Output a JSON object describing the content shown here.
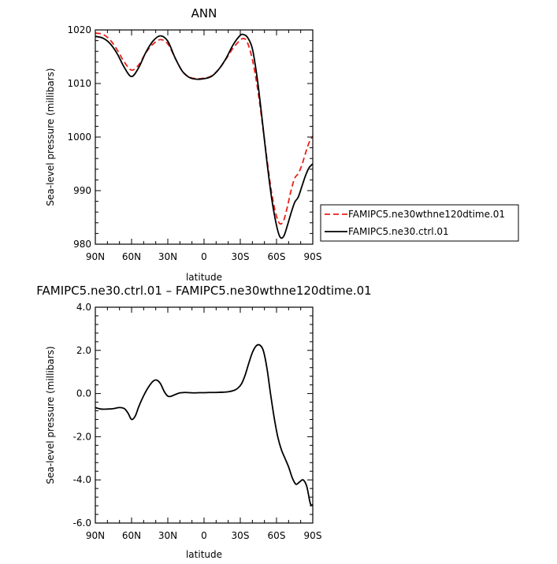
{
  "chart_data": [
    {
      "type": "line",
      "title": "ANN",
      "xlabel": "latitude",
      "ylabel": "Sea-level pressure (millibars)",
      "x_ticks": [
        90,
        60,
        30,
        0,
        -30,
        -60,
        -90
      ],
      "x_tick_labels": [
        "90N",
        "60N",
        "30N",
        "0",
        "30S",
        "60S",
        "90S"
      ],
      "xlim": [
        90,
        -90
      ],
      "y_ticks": [
        980,
        990,
        1000,
        1010,
        1020
      ],
      "y_tick_labels": [
        "980",
        "990",
        "1000",
        "1010",
        "1020"
      ],
      "ylim": [
        980,
        1020
      ],
      "grid": false,
      "legend_position": "right, outside plot",
      "series": [
        {
          "name": "FAMIPC5.ne30wthne120dtime.01",
          "color": "#e8201a",
          "dash": "dashed",
          "x": [
            90,
            84,
            78,
            72,
            66,
            60,
            54,
            48,
            42,
            36,
            30,
            24,
            18,
            12,
            6,
            0,
            -6,
            -12,
            -18,
            -24,
            -30,
            -33,
            -36,
            -40,
            -44,
            -48,
            -52,
            -56,
            -60,
            -63,
            -66,
            -69,
            -72,
            -75,
            -78,
            -81,
            -84,
            -87,
            -90
          ],
          "y": [
            1019.4,
            1019.2,
            1018.2,
            1016.3,
            1014.0,
            1012.5,
            1013.5,
            1015.8,
            1017.4,
            1018.2,
            1017.4,
            1014.8,
            1012.3,
            1011.2,
            1010.9,
            1011.0,
            1011.4,
            1012.6,
            1014.5,
            1016.6,
            1018.1,
            1018.4,
            1017.6,
            1014.5,
            1009.5,
            1003.0,
            996.0,
            989.5,
            985.2,
            983.8,
            984.5,
            987.0,
            990.0,
            992.3,
            993.2,
            994.8,
            997.0,
            999.0,
            1000.2
          ]
        },
        {
          "name": "FAMIPC5.ne30.ctrl.01",
          "color": "#000000",
          "dash": "solid",
          "x": [
            90,
            84,
            78,
            72,
            66,
            60,
            54,
            48,
            42,
            36,
            30,
            24,
            18,
            12,
            6,
            0,
            -6,
            -12,
            -18,
            -24,
            -30,
            -33,
            -36,
            -40,
            -44,
            -48,
            -52,
            -56,
            -60,
            -63,
            -66,
            -69,
            -72,
            -75,
            -78,
            -81,
            -84,
            -87,
            -90
          ],
          "y": [
            1018.8,
            1018.5,
            1017.5,
            1015.6,
            1013.0,
            1011.3,
            1013.0,
            1015.9,
            1018.0,
            1018.9,
            1017.9,
            1014.8,
            1012.3,
            1011.1,
            1010.8,
            1010.9,
            1011.3,
            1012.6,
            1014.6,
            1017.2,
            1019.0,
            1019.1,
            1018.6,
            1016.5,
            1011.0,
            1003.5,
            995.5,
            988.5,
            983.5,
            981.3,
            981.5,
            983.5,
            985.8,
            987.8,
            988.8,
            990.8,
            992.8,
            994.3,
            995.0
          ]
        }
      ]
    },
    {
      "type": "line",
      "title": "FAMIPC5.ne30.ctrl.01 – FAMIPC5.ne30wthne120dtime.01",
      "xlabel": "latitude",
      "ylabel": "Sea-level pressure (millibars)",
      "x_ticks": [
        90,
        60,
        30,
        0,
        -30,
        -60,
        -90
      ],
      "x_tick_labels": [
        "90N",
        "60N",
        "30N",
        "0",
        "30S",
        "60S",
        "90S"
      ],
      "xlim": [
        90,
        -90
      ],
      "y_ticks": [
        -6,
        -4,
        -2,
        0,
        2,
        4
      ],
      "y_tick_labels": [
        "-6.0",
        "-4.0",
        "-2.0",
        "0.0",
        "2.0",
        "4.0"
      ],
      "ylim": [
        -6,
        4
      ],
      "grid": false,
      "series": [
        {
          "color": "#000000",
          "dash": "solid",
          "x": [
            90,
            85,
            80,
            75,
            70,
            66,
            63,
            60,
            57,
            54,
            50,
            46,
            42,
            39,
            36,
            33,
            30,
            27,
            24,
            20,
            16,
            12,
            8,
            4,
            0,
            -5,
            -10,
            -15,
            -20,
            -25,
            -28,
            -31,
            -34,
            -37,
            -40,
            -43,
            -46,
            -49,
            -52,
            -55,
            -58,
            -61,
            -64,
            -67,
            -70,
            -73,
            -76,
            -79,
            -82,
            -85,
            -88,
            -90
          ],
          "y": [
            -0.65,
            -0.72,
            -0.72,
            -0.7,
            -0.65,
            -0.7,
            -0.9,
            -1.2,
            -1.05,
            -0.6,
            -0.1,
            0.3,
            0.58,
            0.62,
            0.45,
            0.1,
            -0.12,
            -0.12,
            -0.05,
            0.03,
            0.05,
            0.04,
            0.03,
            0.04,
            0.04,
            0.05,
            0.05,
            0.06,
            0.08,
            0.15,
            0.25,
            0.45,
            0.85,
            1.4,
            1.9,
            2.2,
            2.25,
            2.0,
            1.2,
            0.0,
            -1.1,
            -2.0,
            -2.6,
            -3.0,
            -3.4,
            -3.9,
            -4.2,
            -4.1,
            -4.0,
            -4.3,
            -5.1,
            -5.15
          ]
        }
      ]
    }
  ]
}
